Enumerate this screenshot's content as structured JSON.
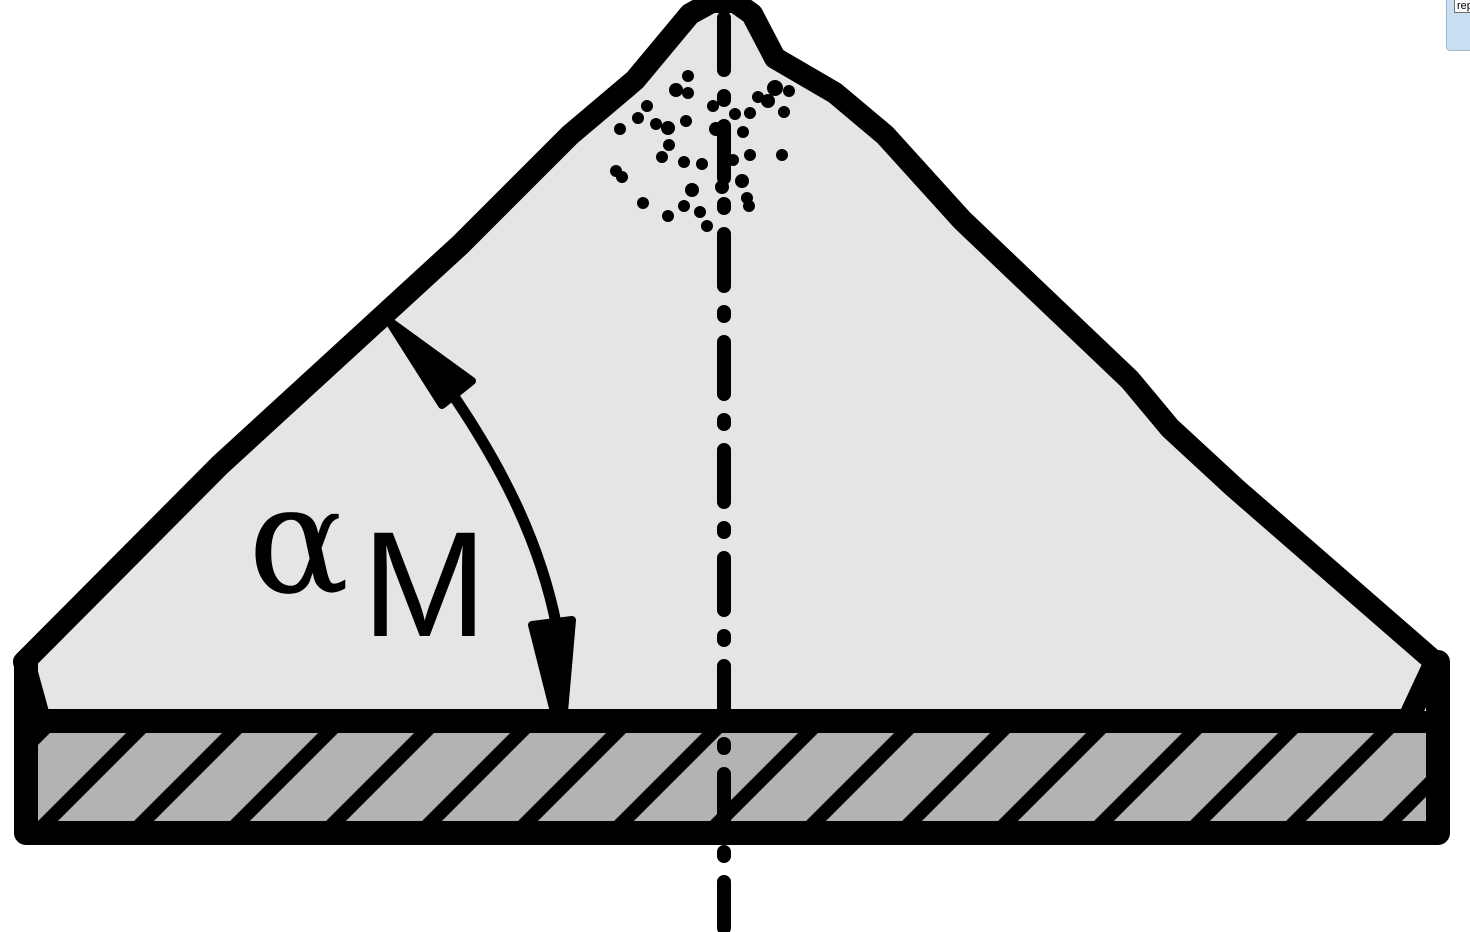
{
  "diagram": {
    "angle_symbol": "α",
    "angle_subscript": "M"
  },
  "corner_tab": {
    "label": "rep"
  },
  "colors": {
    "pile_fill": "#e5e5e5",
    "base_fill": "#b3b3b3",
    "stroke": "#000000",
    "tab_fill": "#c9dff2"
  }
}
